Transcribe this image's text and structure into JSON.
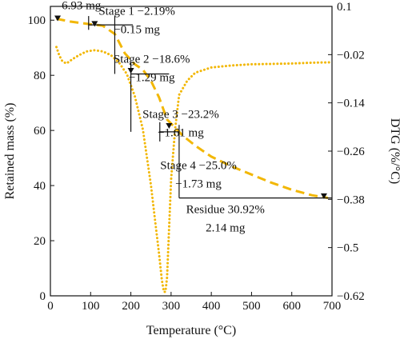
{
  "chart_data": {
    "type": "line",
    "xlabel": "Temperature (°C)",
    "ylabel": "Retained mass (%)",
    "y2label": "DTG (%/°C)",
    "xlim": [
      0,
      700
    ],
    "ylim": [
      0,
      105
    ],
    "y2lim": [
      -0.62,
      0.1
    ],
    "xticks": [
      0,
      100,
      200,
      300,
      400,
      500,
      600,
      700
    ],
    "yticks": [
      0,
      20,
      40,
      60,
      80,
      100
    ],
    "y2ticks": [
      0.1,
      -0.02,
      -0.14,
      -0.26,
      -0.38,
      -0.5,
      -0.62
    ],
    "y2tick_labels": [
      "0.1",
      "−0.02",
      "−0.14",
      "−0.26",
      "−0.38",
      "−0.5",
      "−0.62"
    ],
    "grid": false,
    "series": [
      {
        "axis": "left",
        "style": "dashed",
        "color": "#f2b705",
        "x": [
          15,
          50,
          100,
          130,
          160,
          185,
          210,
          230,
          250,
          270,
          290,
          310,
          330,
          360,
          400,
          450,
          500,
          550,
          600,
          650,
          690
        ],
        "y": [
          100.5,
          99.5,
          98.5,
          98.0,
          95.0,
          88.0,
          84.0,
          82.0,
          78.0,
          72.0,
          64.0,
          61.0,
          58.0,
          54.5,
          50.5,
          47.0,
          44.0,
          41.0,
          38.5,
          36.5,
          35.5
        ]
      },
      {
        "axis": "right",
        "style": "dotted",
        "color": "#f2b705",
        "x": [
          15,
          22,
          30,
          40,
          55,
          70,
          90,
          110,
          130,
          150,
          170,
          190,
          210,
          230,
          250,
          260,
          270,
          277,
          282,
          286,
          290,
          295,
          300,
          310,
          320,
          340,
          360,
          400,
          450,
          500,
          550,
          600,
          650,
          700
        ],
        "y": [
          -0.001,
          -0.022,
          -0.037,
          -0.042,
          -0.031,
          -0.022,
          -0.012,
          -0.009,
          -0.012,
          -0.021,
          -0.039,
          -0.068,
          -0.124,
          -0.207,
          -0.345,
          -0.43,
          -0.515,
          -0.58,
          -0.61,
          -0.61,
          -0.575,
          -0.455,
          -0.33,
          -0.205,
          -0.12,
          -0.085,
          -0.065,
          -0.052,
          -0.047,
          -0.044,
          -0.043,
          -0.042,
          -0.04,
          -0.039
        ]
      }
    ],
    "markers": [
      {
        "x": 18,
        "y": 100.5
      },
      {
        "x": 110,
        "y": 98.5
      },
      {
        "x": 200,
        "y": 81.5
      },
      {
        "x": 295,
        "y": 61.5
      },
      {
        "x": 680,
        "y": 36.0
      }
    ],
    "stage_lines": [
      {
        "x_from": 95,
        "x_to": 205,
        "y": 98.3
      },
      {
        "x_from": 200,
        "x_to": 295,
        "y": 80.5
      },
      {
        "x_from": 270,
        "x_to": 320,
        "y": 59.5
      },
      {
        "x_from": 320,
        "x_to": 700,
        "y": 35.5
      }
    ],
    "stage_verticals": [
      {
        "x": 95,
        "y_from": 96.5,
        "y_to": 101.5
      },
      {
        "x": 160,
        "y_from": 80.5,
        "y_to": 101.5
      },
      {
        "x": 200,
        "y_from": 59.5,
        "y_to": 84.5
      },
      {
        "x": 272,
        "y_from": 56.0,
        "y_to": 63.0
      },
      {
        "x": 320,
        "y_from": 35.5,
        "y_to": 62.0
      }
    ],
    "annotations": [
      {
        "lines": [
          "6.93 mg"
        ],
        "x": 28,
        "y": 104.0,
        "anchor": "start"
      },
      {
        "lines": [
          "Stage 1 −2.19%",
          "−0.15 mg"
        ],
        "x": 215,
        "y": 102.0,
        "anchor": "middle"
      },
      {
        "lines": [
          "Stage 2 −18.6%",
          "−1.29 mg"
        ],
        "x": 252,
        "y": 84.5,
        "anchor": "middle"
      },
      {
        "lines": [
          "Stage 3 −23.2%",
          "−1.61 mg"
        ],
        "x": 324,
        "y": 64.5,
        "anchor": "middle"
      },
      {
        "lines": [
          "Stage 4 −25.0%",
          "−1.73 mg"
        ],
        "x": 368,
        "y": 46.0,
        "anchor": "middle"
      },
      {
        "lines": [
          "Residue 30.92%",
          "2.14 mg"
        ],
        "x": 435,
        "y": 30.0,
        "anchor": "middle"
      }
    ]
  }
}
